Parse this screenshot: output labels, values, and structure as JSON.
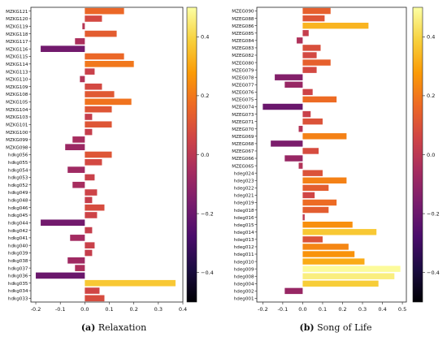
{
  "colorbar_stops": [
    "#000004",
    "#1b0c41",
    "#4a0c6b",
    "#781c6d",
    "#a52c60",
    "#cf4446",
    "#ed6925",
    "#fb9b06",
    "#f7d13d",
    "#fcffa4"
  ],
  "chart_data": [
    {
      "type": "bar",
      "orientation": "horizontal",
      "caption_letter": "(a)",
      "caption_text": "Relaxation",
      "categories": [
        "MZKG121",
        "MZKG120",
        "MZKG119",
        "MZKG118",
        "MZKG117",
        "MZKG116",
        "MZKG115",
        "MZKG114",
        "MZKG113",
        "MZKG110",
        "MZKG109",
        "MZKG108",
        "MZKG105",
        "MZKG104",
        "MZKG103",
        "MZKG101",
        "MZKG100",
        "MZKG099",
        "MZKG098",
        "hdkg056",
        "hdkg055",
        "hdkg054",
        "hdkg053",
        "hdkg052",
        "hdkg049",
        "hdkg048",
        "hdkg046",
        "hdkg045",
        "hdkg044",
        "hdkg042",
        "hdkg041",
        "hdkg040",
        "hdkg039",
        "hdkg038",
        "hdkg037",
        "hdkg036",
        "hdkg035",
        "hdkg034",
        "hdkg033"
      ],
      "values": [
        0.16,
        0.07,
        -0.01,
        0.13,
        -0.04,
        -0.18,
        0.16,
        0.2,
        0.04,
        -0.02,
        0.07,
        0.12,
        0.19,
        0.11,
        0.03,
        0.11,
        0.03,
        -0.05,
        -0.08,
        0.11,
        0.07,
        -0.07,
        0.04,
        -0.05,
        0.05,
        0.03,
        0.08,
        0.05,
        -0.18,
        0.03,
        -0.06,
        0.04,
        0.03,
        -0.07,
        -0.04,
        -0.2,
        0.37,
        0.06,
        0.08
      ],
      "xlim": [
        -0.22,
        0.4
      ],
      "xticks": [
        "-0.2",
        "-0.1",
        "0.0",
        "0.1",
        "0.2",
        "0.3",
        "0.4"
      ],
      "xtick_values": [
        -0.2,
        -0.1,
        0.0,
        0.1,
        0.2,
        0.3,
        0.4
      ],
      "color_range": [
        -0.5,
        0.5
      ],
      "colorbar_ticks": [
        "0.4",
        "0.2",
        "0.0",
        "−0.2",
        "−0.4"
      ],
      "colorbar_tick_values": [
        0.4,
        0.2,
        0.0,
        -0.2,
        -0.4
      ]
    },
    {
      "type": "bar",
      "orientation": "horizontal",
      "caption_letter": "(b)",
      "caption_text": "Song of Life",
      "categories": [
        "MZEG090",
        "MZEG088",
        "MZEG086",
        "MZEG085",
        "MZEG084",
        "MZEG083",
        "MZEG082",
        "MZEG080",
        "MZEG079",
        "MZEG078",
        "MZEG077",
        "MZEG076",
        "MZEG075",
        "MZEG074",
        "MZEG073",
        "MZEG071",
        "MZEG070",
        "MZEG069",
        "MZEG068",
        "MZEG067",
        "MZEG066",
        "MZEG065",
        "hdeg024",
        "hdeg023",
        "hdeg022",
        "hdeg021",
        "hdeg019",
        "hdeg018",
        "hdeg016",
        "hdeg015",
        "hdeg014",
        "hdeg013",
        "hdeg012",
        "hdeg011",
        "hdeg010",
        "hdeg009",
        "hdeg008",
        "hdeg004",
        "hdeg002",
        "hdeg001"
      ],
      "values": [
        0.14,
        0.11,
        0.33,
        0.03,
        -0.03,
        0.09,
        0.07,
        0.14,
        0.07,
        -0.14,
        -0.09,
        0.05,
        0.17,
        -0.2,
        0.04,
        0.1,
        -0.02,
        0.22,
        -0.16,
        0.08,
        -0.09,
        -0.02,
        0.1,
        0.22,
        0.13,
        0.06,
        0.17,
        0.13,
        0.01,
        0.25,
        0.37,
        0.1,
        0.23,
        0.26,
        0.31,
        0.49,
        0.46,
        0.38,
        -0.09,
        0.0
      ],
      "xlim": [
        -0.23,
        0.52
      ],
      "xticks": [
        "-0.2",
        "-0.1",
        "0.0",
        "0.1",
        "0.2",
        "0.3",
        "0.4",
        "0.5"
      ],
      "xtick_values": [
        -0.2,
        -0.1,
        0.0,
        0.1,
        0.2,
        0.3,
        0.4,
        0.5
      ],
      "color_range": [
        -0.5,
        0.5
      ],
      "colorbar_ticks": [
        "0.4",
        "0.2",
        "0.0",
        "−0.2",
        "−0.4"
      ],
      "colorbar_tick_values": [
        0.4,
        0.2,
        0.0,
        -0.2,
        -0.4
      ]
    }
  ]
}
